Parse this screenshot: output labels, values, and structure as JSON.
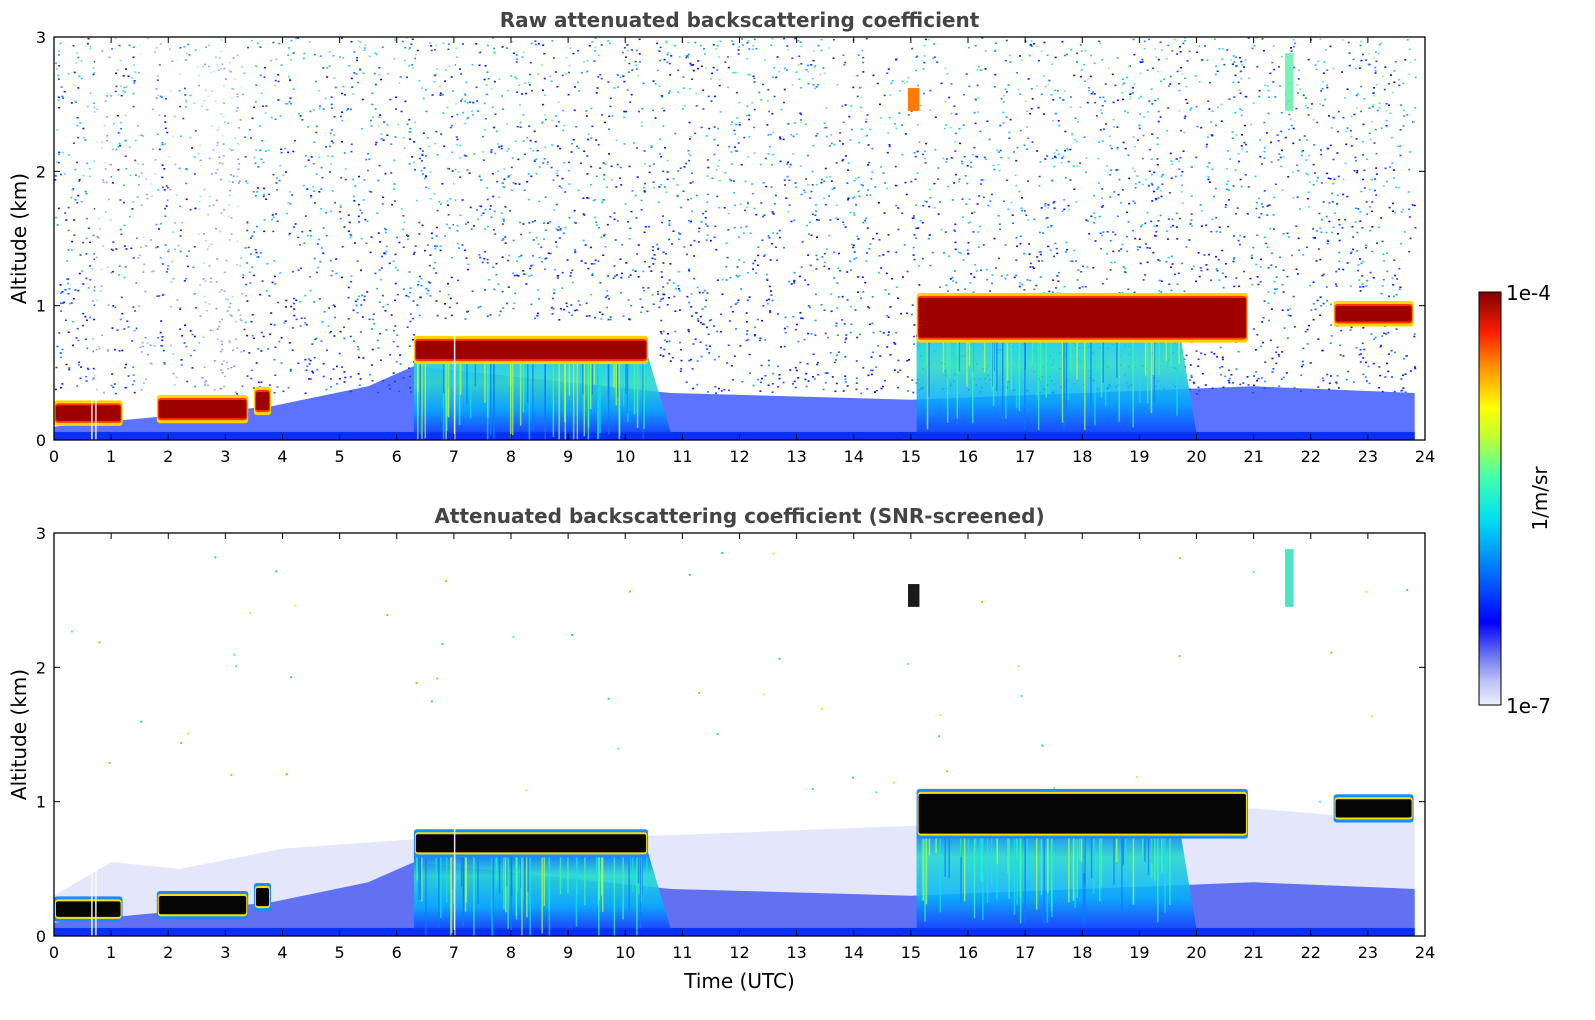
{
  "chart_data": {
    "type": "heatmap",
    "panels": [
      {
        "id": "raw",
        "title": "Raw attenuated backscattering coefficient",
        "ylabel": "Altitude (km)",
        "xlabel": "",
        "xlim": [
          0,
          24
        ],
        "ylim": [
          0,
          3
        ],
        "x_ticks": [
          0,
          1,
          2,
          3,
          4,
          5,
          6,
          7,
          8,
          9,
          10,
          11,
          12,
          13,
          14,
          15,
          16,
          17,
          18,
          19,
          20,
          21,
          22,
          23,
          24
        ],
        "y_ticks": [
          0,
          1,
          2,
          3
        ],
        "screened": false,
        "cloud_layers": [
          {
            "t_start": 0.0,
            "t_end": 1.2,
            "base_km": 0.12,
            "top_km": 0.28
          },
          {
            "t_start": 1.8,
            "t_end": 3.4,
            "base_km": 0.14,
            "top_km": 0.32
          },
          {
            "t_start": 3.5,
            "t_end": 3.8,
            "base_km": 0.2,
            "top_km": 0.38
          },
          {
            "t_start": 6.3,
            "t_end": 10.4,
            "base_km": 0.58,
            "top_km": 0.76
          },
          {
            "t_start": 15.1,
            "t_end": 20.9,
            "base_km": 0.74,
            "top_km": 1.08
          },
          {
            "t_start": 22.4,
            "t_end": 23.8,
            "base_km": 0.86,
            "top_km": 1.02
          }
        ]
      },
      {
        "id": "screened",
        "title": "Attenuated backscattering coefficient (SNR-screened)",
        "ylabel": "Altitude (km)",
        "xlabel": "Time (UTC)",
        "xlim": [
          0,
          24
        ],
        "ylim": [
          0,
          3
        ],
        "x_ticks": [
          0,
          1,
          2,
          3,
          4,
          5,
          6,
          7,
          8,
          9,
          10,
          11,
          12,
          13,
          14,
          15,
          16,
          17,
          18,
          19,
          20,
          21,
          22,
          23,
          24
        ],
        "y_ticks": [
          0,
          1,
          2,
          3
        ],
        "screened": true,
        "cloud_layers": [
          {
            "t_start": 0.0,
            "t_end": 1.2,
            "base_km": 0.12,
            "top_km": 0.28
          },
          {
            "t_start": 1.8,
            "t_end": 3.4,
            "base_km": 0.14,
            "top_km": 0.32
          },
          {
            "t_start": 3.5,
            "t_end": 3.8,
            "base_km": 0.2,
            "top_km": 0.38
          },
          {
            "t_start": 6.3,
            "t_end": 10.4,
            "base_km": 0.6,
            "top_km": 0.78
          },
          {
            "t_start": 15.1,
            "t_end": 20.9,
            "base_km": 0.74,
            "top_km": 1.08
          },
          {
            "t_start": 22.4,
            "t_end": 23.8,
            "base_km": 0.86,
            "top_km": 1.04
          }
        ]
      }
    ],
    "colorbar": {
      "label": "1/m/sr",
      "min_label": "1e-7",
      "max_label": "1e-4",
      "scale": "log",
      "range": [
        1e-07,
        0.0001
      ],
      "colormap": "jet"
    }
  }
}
